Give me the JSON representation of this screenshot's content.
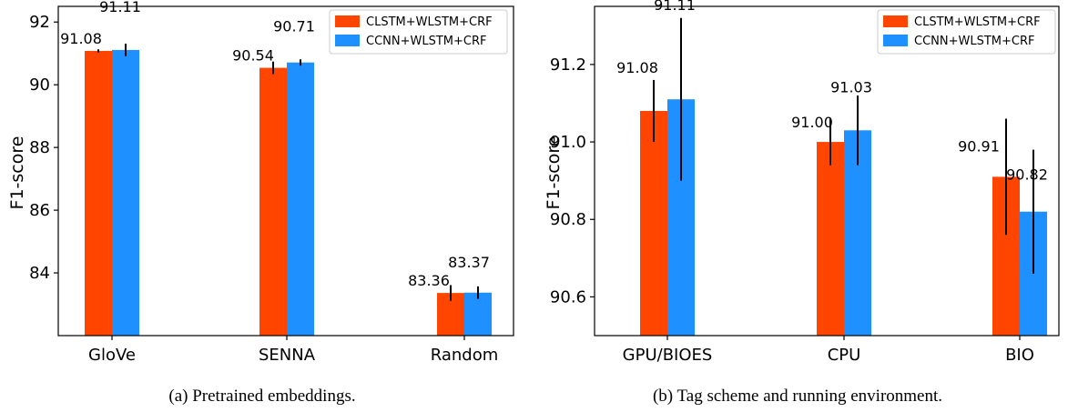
{
  "colors": {
    "series_a": "#ff4500",
    "series_b": "#1e90ff",
    "error": "#000000"
  },
  "chart_data": [
    {
      "type": "bar",
      "ylabel": "F1-score",
      "ylim": [
        82.0,
        92.5
      ],
      "yticks": [
        84,
        86,
        88,
        90,
        92
      ],
      "ytick_labels": [
        "84",
        "86",
        "88",
        "90",
        "92"
      ],
      "categories": [
        "GloVe",
        "SENNA",
        "Random"
      ],
      "series": [
        {
          "name": "CLSTM+WLSTM+CRF",
          "values": [
            91.08,
            90.54,
            83.36
          ],
          "errors": [
            0.05,
            0.2,
            0.25
          ],
          "labels": [
            "91.08",
            "90.54",
            "83.36"
          ]
        },
        {
          "name": "CCNN+WLSTM+CRF",
          "values": [
            91.11,
            90.71,
            83.37
          ],
          "errors": [
            0.2,
            0.1,
            0.2
          ],
          "labels": [
            "91.11",
            "90.71",
            "83.37"
          ]
        }
      ],
      "legend_position": "top-right",
      "caption": "(a) Pretrained embeddings."
    },
    {
      "type": "bar",
      "ylabel": "F1-score",
      "ylim": [
        90.5,
        91.35
      ],
      "yticks": [
        90.6,
        90.8,
        91.0,
        91.2
      ],
      "ytick_labels": [
        "90.6",
        "90.8",
        "91.0",
        "91.2"
      ],
      "categories": [
        "GPU/BIOES",
        "CPU",
        "BIO"
      ],
      "series": [
        {
          "name": "CLSTM+WLSTM+CRF",
          "values": [
            91.08,
            91.0,
            90.91
          ],
          "errors": [
            0.08,
            0.06,
            0.15
          ],
          "labels": [
            "91.08",
            "91.00",
            "90.91"
          ]
        },
        {
          "name": "CCNN+WLSTM+CRF",
          "values": [
            91.11,
            91.03,
            90.82
          ],
          "errors": [
            0.21,
            0.09,
            0.16
          ],
          "labels": [
            "91.11",
            "91.03",
            "90.82"
          ]
        }
      ],
      "legend_position": "top-right",
      "caption": "(b) Tag scheme and running environment."
    }
  ]
}
